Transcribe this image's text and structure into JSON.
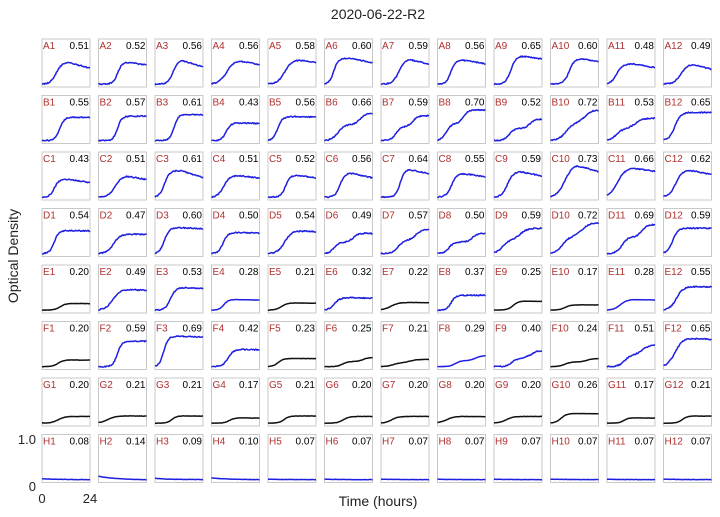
{
  "chart_data": {
    "type": "line",
    "title": "2020-06-22-R2",
    "xlabel": "Time (hours)",
    "ylabel": "Optical Density",
    "xlim": [
      0,
      24
    ],
    "ylim": [
      0,
      1.0
    ],
    "x_ticks": [
      "0",
      "24"
    ],
    "y_ticks": [
      "0",
      "1.0"
    ],
    "rows": [
      "A",
      "B",
      "C",
      "D",
      "E",
      "F",
      "G",
      "H"
    ],
    "cols": [
      "1",
      "2",
      "3",
      "4",
      "5",
      "6",
      "7",
      "8",
      "9",
      "10",
      "11",
      "12"
    ],
    "grid": false,
    "colors": {
      "growth": "#1f1fe0",
      "no_growth": "#111111",
      "well_label": "#b03030",
      "frame": "#c9c9c9"
    },
    "wells": [
      {
        "row": "A",
        "wells": [
          {
            "name": "A1",
            "max": "0.51"
          },
          {
            "name": "A2",
            "max": "0.52"
          },
          {
            "name": "A3",
            "max": "0.56"
          },
          {
            "name": "A4",
            "max": "0.56"
          },
          {
            "name": "A5",
            "max": "0.58"
          },
          {
            "name": "A6",
            "max": "0.60"
          },
          {
            "name": "A7",
            "max": "0.59"
          },
          {
            "name": "A8",
            "max": "0.56"
          },
          {
            "name": "A9",
            "max": "0.65"
          },
          {
            "name": "A10",
            "max": "0.60"
          },
          {
            "name": "A11",
            "max": "0.48"
          },
          {
            "name": "A12",
            "max": "0.49"
          }
        ]
      },
      {
        "row": "B",
        "wells": [
          {
            "name": "B1",
            "max": "0.55"
          },
          {
            "name": "B2",
            "max": "0.57"
          },
          {
            "name": "B3",
            "max": "0.61"
          },
          {
            "name": "B4",
            "max": "0.43"
          },
          {
            "name": "B5",
            "max": "0.56"
          },
          {
            "name": "B6",
            "max": "0.66"
          },
          {
            "name": "B7",
            "max": "0.59"
          },
          {
            "name": "B8",
            "max": "0.70"
          },
          {
            "name": "B9",
            "max": "0.52"
          },
          {
            "name": "B10",
            "max": "0.72"
          },
          {
            "name": "B11",
            "max": "0.53"
          },
          {
            "name": "B12",
            "max": "0.65"
          }
        ]
      },
      {
        "row": "C",
        "wells": [
          {
            "name": "C1",
            "max": "0.43"
          },
          {
            "name": "C2",
            "max": "0.51"
          },
          {
            "name": "C3",
            "max": "0.61"
          },
          {
            "name": "C4",
            "max": "0.51"
          },
          {
            "name": "C5",
            "max": "0.52"
          },
          {
            "name": "C6",
            "max": "0.56"
          },
          {
            "name": "C7",
            "max": "0.64"
          },
          {
            "name": "C8",
            "max": "0.55"
          },
          {
            "name": "C9",
            "max": "0.59"
          },
          {
            "name": "C10",
            "max": "0.73"
          },
          {
            "name": "C11",
            "max": "0.66"
          },
          {
            "name": "C12",
            "max": "0.62"
          }
        ]
      },
      {
        "row": "D",
        "wells": [
          {
            "name": "D1",
            "max": "0.54"
          },
          {
            "name": "D2",
            "max": "0.47"
          },
          {
            "name": "D3",
            "max": "0.60"
          },
          {
            "name": "D4",
            "max": "0.50"
          },
          {
            "name": "D5",
            "max": "0.54"
          },
          {
            "name": "D6",
            "max": "0.49"
          },
          {
            "name": "D7",
            "max": "0.57"
          },
          {
            "name": "D8",
            "max": "0.50"
          },
          {
            "name": "D9",
            "max": "0.59"
          },
          {
            "name": "D10",
            "max": "0.72"
          },
          {
            "name": "D11",
            "max": "0.69"
          },
          {
            "name": "D12",
            "max": "0.59"
          }
        ]
      },
      {
        "row": "E",
        "wells": [
          {
            "name": "E1",
            "max": "0.20"
          },
          {
            "name": "E2",
            "max": "0.49"
          },
          {
            "name": "E3",
            "max": "0.53"
          },
          {
            "name": "E4",
            "max": "0.28"
          },
          {
            "name": "E5",
            "max": "0.21"
          },
          {
            "name": "E6",
            "max": "0.32"
          },
          {
            "name": "E7",
            "max": "0.22"
          },
          {
            "name": "E8",
            "max": "0.37"
          },
          {
            "name": "E9",
            "max": "0.25"
          },
          {
            "name": "E10",
            "max": "0.17"
          },
          {
            "name": "E11",
            "max": "0.28"
          },
          {
            "name": "E12",
            "max": "0.55"
          }
        ]
      },
      {
        "row": "F",
        "wells": [
          {
            "name": "F1",
            "max": "0.20"
          },
          {
            "name": "F2",
            "max": "0.59"
          },
          {
            "name": "F3",
            "max": "0.69"
          },
          {
            "name": "F4",
            "max": "0.42"
          },
          {
            "name": "F5",
            "max": "0.23"
          },
          {
            "name": "F6",
            "max": "0.25"
          },
          {
            "name": "F7",
            "max": "0.21"
          },
          {
            "name": "F8",
            "max": "0.29"
          },
          {
            "name": "F9",
            "max": "0.40"
          },
          {
            "name": "F10",
            "max": "0.24"
          },
          {
            "name": "F11",
            "max": "0.51"
          },
          {
            "name": "F12",
            "max": "0.65"
          }
        ]
      },
      {
        "row": "G",
        "wells": [
          {
            "name": "G1",
            "max": "0.20"
          },
          {
            "name": "G2",
            "max": "0.21"
          },
          {
            "name": "G3",
            "max": "0.21"
          },
          {
            "name": "G4",
            "max": "0.17"
          },
          {
            "name": "G5",
            "max": "0.21"
          },
          {
            "name": "G6",
            "max": "0.20"
          },
          {
            "name": "G7",
            "max": "0.20"
          },
          {
            "name": "G8",
            "max": "0.20"
          },
          {
            "name": "G9",
            "max": "0.20"
          },
          {
            "name": "G10",
            "max": "0.26"
          },
          {
            "name": "G11",
            "max": "0.17"
          },
          {
            "name": "G12",
            "max": "0.21"
          }
        ]
      },
      {
        "row": "H",
        "wells": [
          {
            "name": "H1",
            "max": "0.08"
          },
          {
            "name": "H2",
            "max": "0.14"
          },
          {
            "name": "H3",
            "max": "0.09"
          },
          {
            "name": "H4",
            "max": "0.10"
          },
          {
            "name": "H5",
            "max": "0.07"
          },
          {
            "name": "H6",
            "max": "0.07"
          },
          {
            "name": "H7",
            "max": "0.07"
          },
          {
            "name": "H8",
            "max": "0.07"
          },
          {
            "name": "H9",
            "max": "0.07"
          },
          {
            "name": "H10",
            "max": "0.07"
          },
          {
            "name": "H11",
            "max": "0.07"
          },
          {
            "name": "H12",
            "max": "0.07"
          }
        ]
      }
    ]
  }
}
